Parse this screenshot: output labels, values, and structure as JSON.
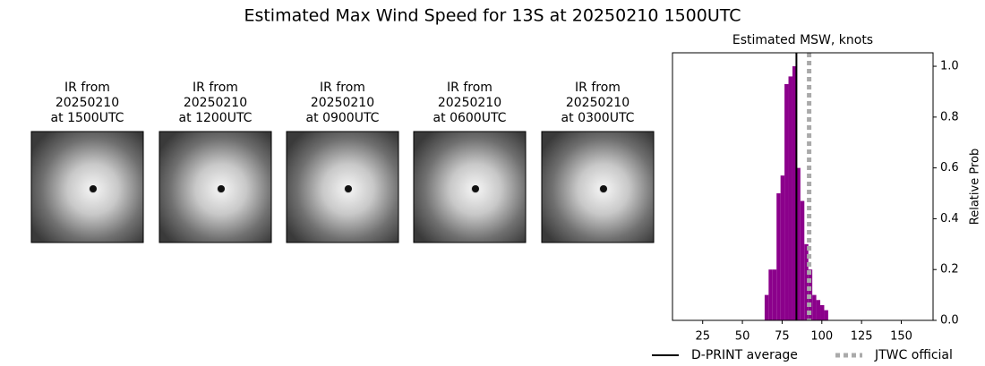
{
  "title": "Estimated Max Wind Speed for 13S at 20250210 1500UTC",
  "panels": [
    {
      "caption": [
        "IR from",
        "20250210",
        "at 1500UTC"
      ]
    },
    {
      "caption": [
        "IR from",
        "20250210",
        "at 1200UTC"
      ]
    },
    {
      "caption": [
        "IR from",
        "20250210",
        "at 0900UTC"
      ]
    },
    {
      "caption": [
        "IR from",
        "20250210",
        "at 0600UTC"
      ]
    },
    {
      "caption": [
        "IR from",
        "20250210",
        "at 0300UTC"
      ]
    }
  ],
  "chart_data": {
    "type": "histogram",
    "title": "Estimated MSW, knots",
    "y_label": "Relative Prob",
    "bins": [
      64,
      66.5,
      69,
      71.5,
      74,
      76.5,
      79,
      81.5,
      84,
      86.5,
      89,
      91.5,
      94,
      96.5,
      99,
      101.5,
      104
    ],
    "values": [
      0.1,
      0.2,
      0.2,
      0.5,
      0.57,
      0.93,
      0.96,
      1.0,
      0.6,
      0.47,
      0.3,
      0.2,
      0.1,
      0.08,
      0.06,
      0.04
    ],
    "color": "#8b008b",
    "lines": [
      {
        "name": "D-PRINT average",
        "value": 84,
        "color": "#000000",
        "style": "solid"
      },
      {
        "name": "JTWC official",
        "value": 92,
        "color": "#aaaaaa",
        "style": "dotted"
      }
    ],
    "xlim": [
      6,
      170
    ],
    "xticks": [
      25,
      50,
      75,
      100,
      125,
      150
    ],
    "ylim": [
      0,
      1.053
    ],
    "yticks": [
      {
        "value": 0,
        "label": "0.0"
      },
      {
        "value": 0.2,
        "label": "0.2"
      },
      {
        "value": 0.4,
        "label": "0.4"
      },
      {
        "value": 0.6,
        "label": "0.6"
      },
      {
        "value": 0.8,
        "label": "0.8"
      },
      {
        "value": 1.0,
        "label": "1.0"
      }
    ],
    "y_axis_side": "right",
    "legend": "bottom"
  }
}
